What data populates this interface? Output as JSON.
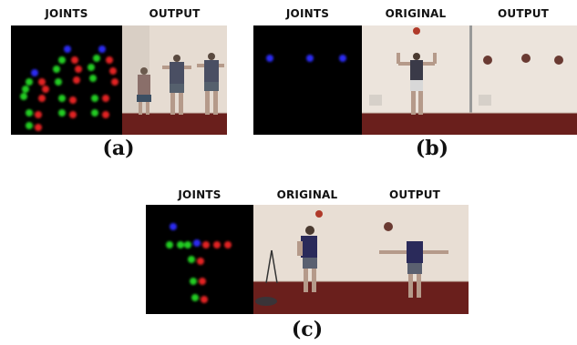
{
  "figure": {
    "panel_a": {
      "headers": [
        "JOINTS",
        "OUTPUT"
      ],
      "caption": "(a)"
    },
    "panel_b": {
      "headers": [
        "JOINTS",
        "ORIGINAL",
        "OUTPUT"
      ],
      "caption": "(b)"
    },
    "panel_c": {
      "headers": [
        "JOINTS",
        "ORIGINAL",
        "OUTPUT"
      ],
      "caption": "(c)"
    }
  },
  "colors": {
    "joints_background": "#000000",
    "joint_blue": "#2a2af0",
    "joint_green": "#22cc22",
    "joint_red": "#e22222",
    "room_wall": "#e6dcd2",
    "room_floor": "#6a1f1c"
  }
}
